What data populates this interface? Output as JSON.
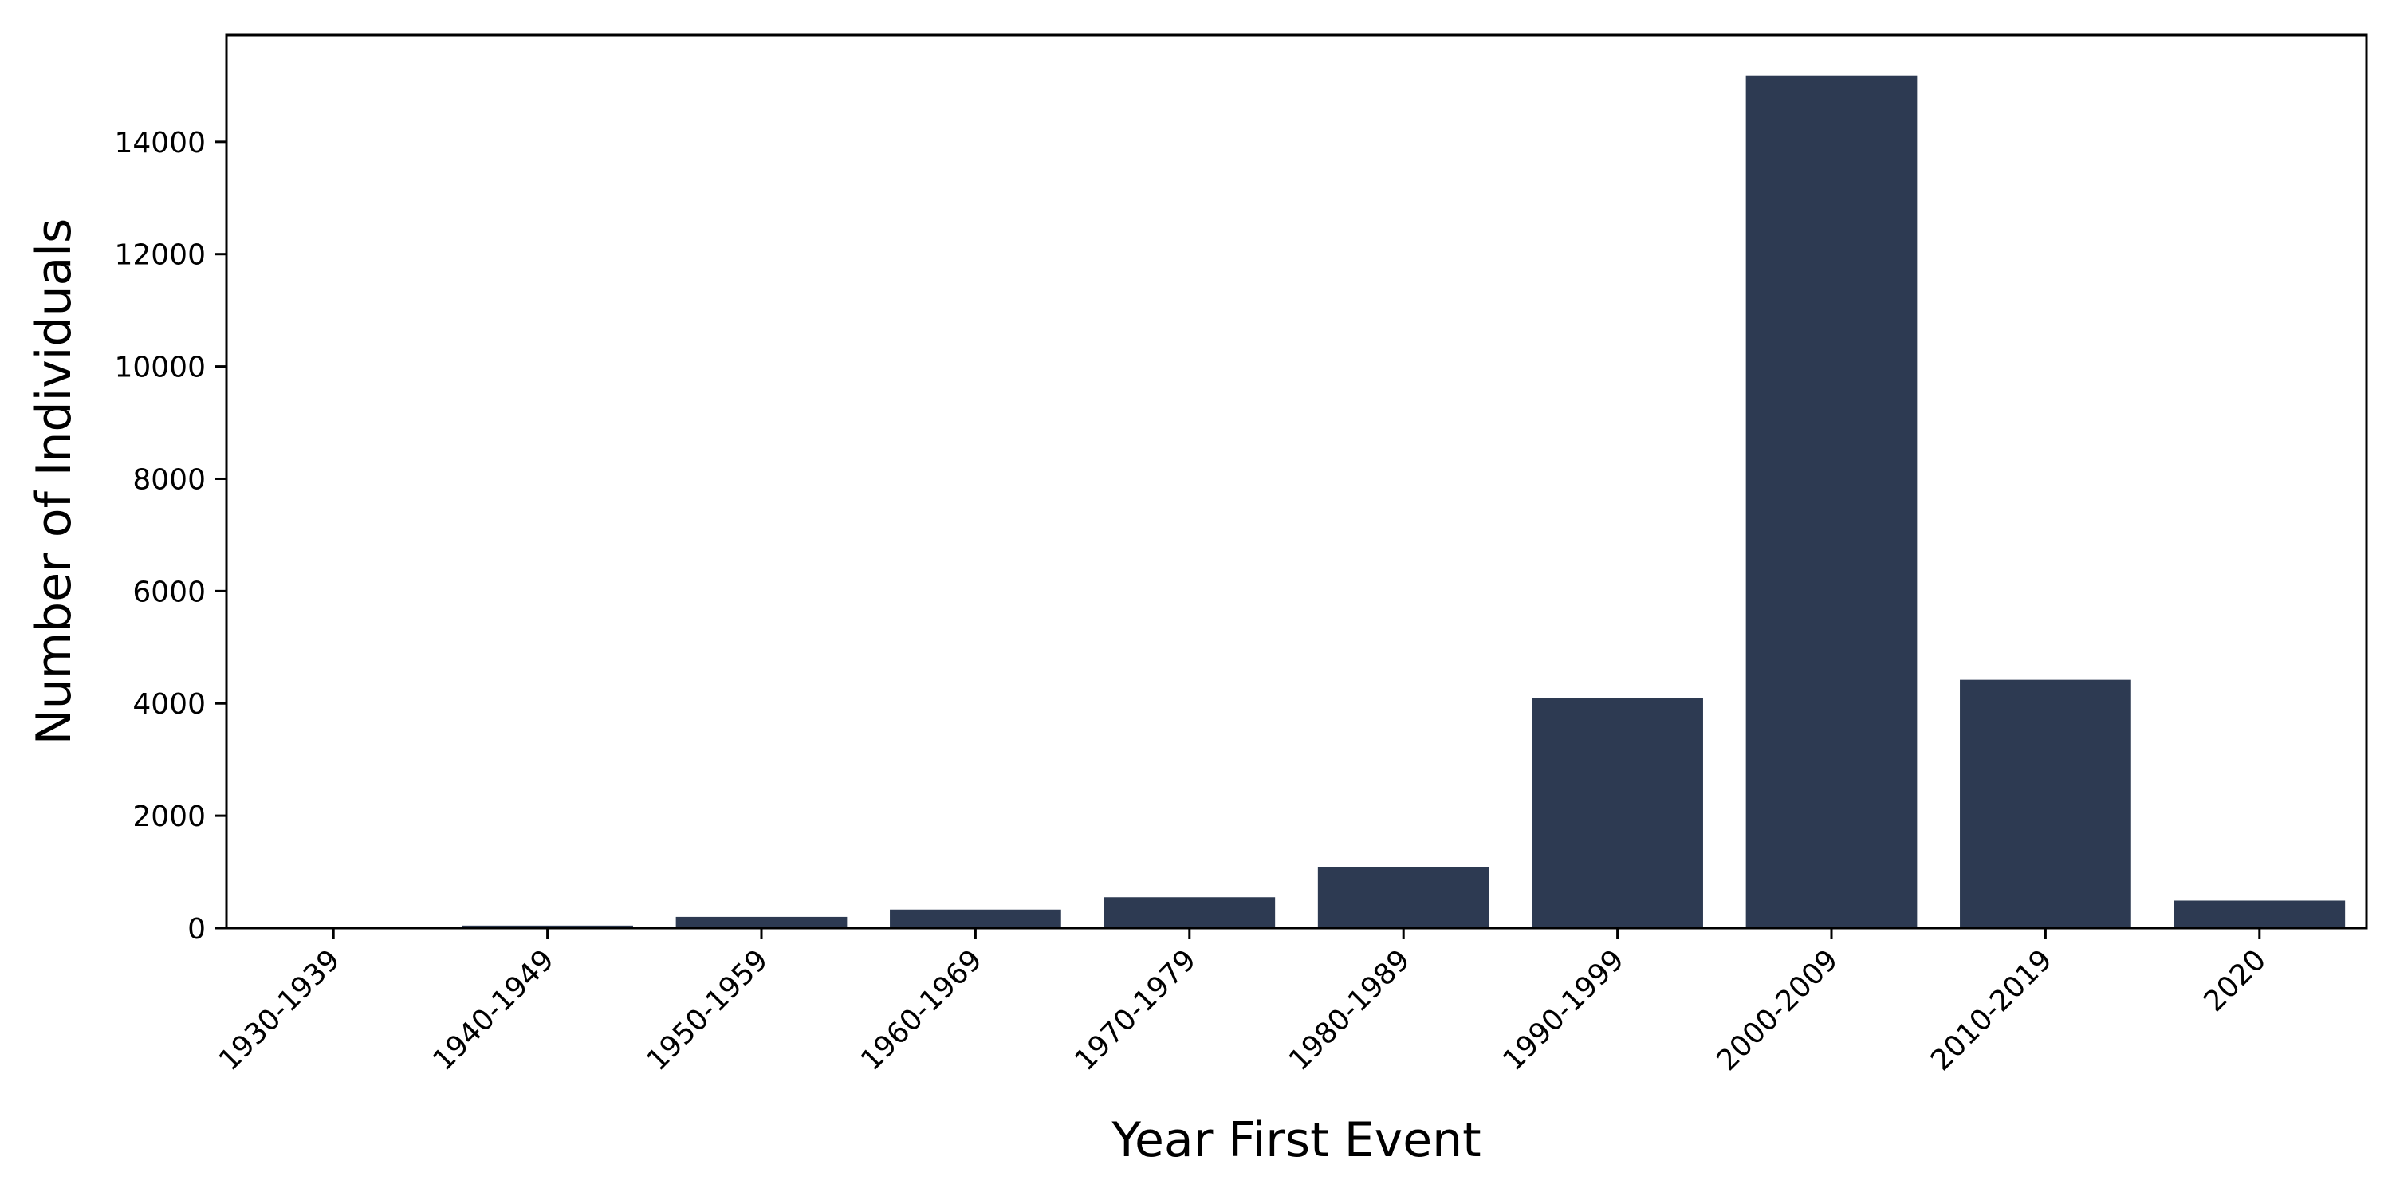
{
  "chart_data": {
    "type": "bar",
    "title": "",
    "xlabel": "Year First Event",
    "ylabel": "Number of Individuals",
    "categories": [
      "1930-1939",
      "1940-1949",
      "1950-1959",
      "1960-1969",
      "1970-1979",
      "1980-1989",
      "1990-1999",
      "2000-2009",
      "2010-2019",
      "2020"
    ],
    "values": [
      5,
      45,
      200,
      330,
      550,
      1080,
      4100,
      15180,
      4420,
      490
    ],
    "ylim": [
      0,
      15900
    ],
    "yticks": [
      0,
      2000,
      4000,
      6000,
      8000,
      10000,
      12000,
      14000
    ],
    "grid": false,
    "bar_color": "#2d3a52"
  }
}
